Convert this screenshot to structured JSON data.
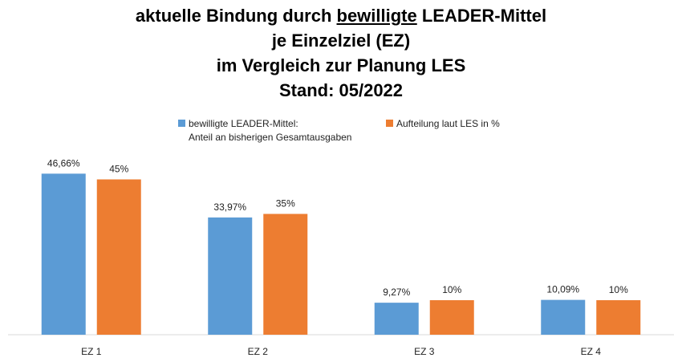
{
  "chart_data": {
    "type": "bar",
    "title": {
      "line1_pre": "aktuelle Bindung durch ",
      "line1_underlined": "bewilligte",
      "line1_post": " LEADER-Mittel",
      "line2": "je Einzelziel (EZ)",
      "line3": "im Vergleich zur Planung LES",
      "line4": "Stand: 05/2022"
    },
    "legend": {
      "placement": "top",
      "items": [
        {
          "line1": "bewilligte LEADER-Mittel:",
          "line2": "Anteil an bisherigen Gesamtausgaben",
          "color": "#5B9BD5"
        },
        {
          "line1": "Aufteilung laut LES in %",
          "color": "#ED7D31"
        }
      ]
    },
    "categories": [
      "EZ 1",
      "EZ 2",
      "EZ 3",
      "EZ 4"
    ],
    "series": [
      {
        "name": "bewilligte LEADER-Mittel: Anteil an bisherigen Gesamtausgaben",
        "color": "#5B9BD5",
        "values": [
          46.66,
          33.97,
          9.27,
          10.09
        ],
        "labels": [
          "46,66%",
          "33,97%",
          "9,27%",
          "10,09%"
        ]
      },
      {
        "name": "Aufteilung laut LES in %",
        "color": "#ED7D31",
        "values": [
          45,
          35,
          10,
          10
        ],
        "labels": [
          "45%",
          "35%",
          "10%",
          "10%"
        ]
      }
    ],
    "ylim": [
      0,
      55
    ],
    "grid": false
  }
}
